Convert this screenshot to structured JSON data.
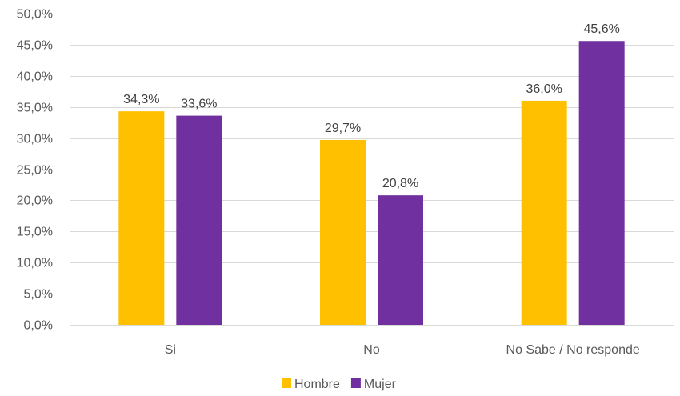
{
  "chart_data": {
    "type": "bar",
    "title": "",
    "xlabel": "",
    "ylabel": "",
    "categories": [
      "Si",
      "No",
      "No Sabe / No responde"
    ],
    "series": [
      {
        "name": "Hombre",
        "color": "#FFC000",
        "values": [
          34.3,
          29.7,
          36.0
        ],
        "labels": [
          "34,3%",
          "29,7%",
          "36,0%"
        ]
      },
      {
        "name": "Mujer",
        "color": "#7030A0",
        "values": [
          33.6,
          20.8,
          45.6
        ],
        "labels": [
          "33,6%",
          "20,8%",
          "45,6%"
        ]
      }
    ],
    "ylim": [
      0,
      50
    ],
    "yticks": [
      0,
      5,
      10,
      15,
      20,
      25,
      30,
      35,
      40,
      45,
      50
    ],
    "ytick_labels": [
      "0,0%",
      "5,0%",
      "10,0%",
      "15,0%",
      "20,0%",
      "25,0%",
      "30,0%",
      "35,0%",
      "40,0%",
      "45,0%",
      "50,0%"
    ],
    "grid": true,
    "legend_position": "bottom-center"
  }
}
